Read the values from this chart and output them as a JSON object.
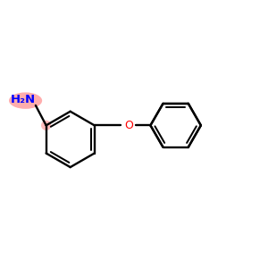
{
  "background_color": "#ffffff",
  "bond_color": "#000000",
  "oxygen_color": "#ff0000",
  "nh2_text_color": "#0000ff",
  "highlight_color": "#ff9999",
  "figsize": [
    3.0,
    3.0
  ],
  "dpi": 100,
  "xlim": [
    0,
    10
  ],
  "ylim": [
    0,
    10
  ]
}
